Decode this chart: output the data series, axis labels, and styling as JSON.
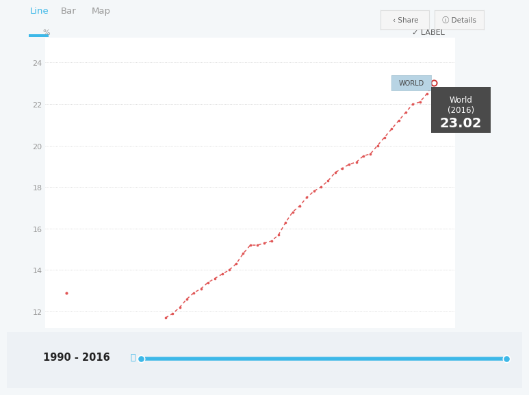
{
  "years_line": [
    1997,
    1997.5,
    1998,
    1998.5,
    1999,
    1999.5,
    2000,
    2000.5,
    2001,
    2001.5,
    2002,
    2002.5,
    2003,
    2003.5,
    2004,
    2004.5,
    2005,
    2005.5,
    2006,
    2006.5,
    2007,
    2007.5,
    2008,
    2008.5,
    2009,
    2009.5,
    2010,
    2010.5,
    2011,
    2011.5,
    2012,
    2012.5,
    2013,
    2013.5,
    2014,
    2014.5,
    2015,
    2015.5,
    2016
  ],
  "values_line": [
    11.7,
    11.9,
    12.2,
    12.6,
    12.9,
    13.1,
    13.4,
    13.6,
    13.8,
    14.0,
    14.3,
    14.8,
    15.2,
    15.2,
    15.3,
    15.4,
    15.7,
    16.3,
    16.8,
    17.1,
    17.5,
    17.8,
    18.0,
    18.3,
    18.7,
    18.9,
    19.1,
    19.2,
    19.5,
    19.6,
    20.0,
    20.4,
    20.8,
    21.2,
    21.6,
    22.0,
    22.1,
    22.5,
    23.02
  ],
  "isolated_year": 1990,
  "isolated_value": 12.9,
  "line_color": "#e05555",
  "dot_color": "#e05555",
  "last_point_color": "#cc3333",
  "bg_color": "#f4f7f9",
  "plot_bg": "#ffffff",
  "grid_color": "#cccccc",
  "tab_active_color": "#3db8e8",
  "tab_inactive_color": "#999999",
  "btn_bg": "#f5f5f5",
  "btn_border": "#dddddd",
  "ylabel": "%",
  "yticks": [
    12,
    14,
    16,
    18,
    20,
    22,
    24
  ],
  "xticks": [
    1990,
    1995,
    2000,
    2005,
    2010,
    2015
  ],
  "xlim": [
    1988.5,
    2017.5
  ],
  "ylim": [
    11.2,
    25.2
  ],
  "tooltip_bg": "#4a4a4a",
  "tooltip_text": "#ffffff",
  "label_bg": "#b8d4e4",
  "label_border": "#99bbcc",
  "label_text": "#444444",
  "year_range_text": "1990 - 2016",
  "bottom_bg": "#edf1f5",
  "slider_color": "#3db8e8",
  "tabs": [
    "Line",
    "Bar",
    "Map"
  ],
  "active_tab_idx": 0
}
